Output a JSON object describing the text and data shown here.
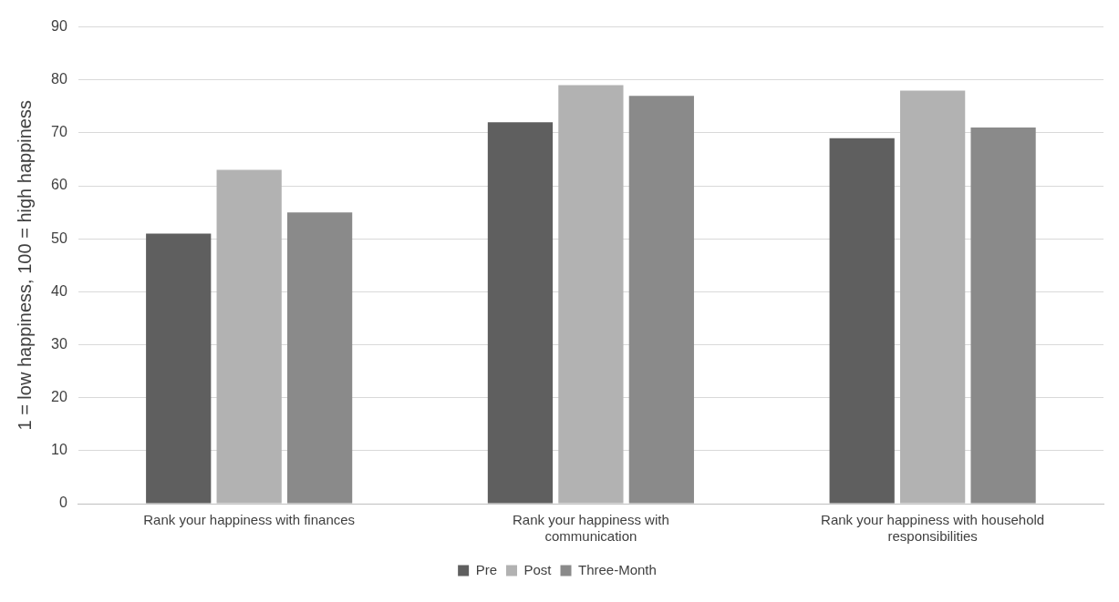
{
  "chart_data": {
    "type": "bar",
    "ylabel": "1 = low happiness, 100 = high happiness",
    "categories": [
      "Rank your happiness with finances",
      "Rank your happiness with communication",
      "Rank your happiness with household responsibilities"
    ],
    "series": [
      {
        "name": "Pre",
        "color": "#5f5f5f",
        "values": [
          51,
          72,
          69
        ]
      },
      {
        "name": "Post",
        "color": "#b2b2b2",
        "values": [
          63,
          79,
          78
        ]
      },
      {
        "name": "Three-Month",
        "color": "#8a8a8a",
        "values": [
          55,
          77,
          71
        ]
      }
    ],
    "ylim": [
      0,
      90
    ],
    "yticks": [
      0,
      10,
      20,
      30,
      40,
      50,
      60,
      70,
      80,
      90
    ],
    "grid": "y",
    "legend": "bottom"
  }
}
